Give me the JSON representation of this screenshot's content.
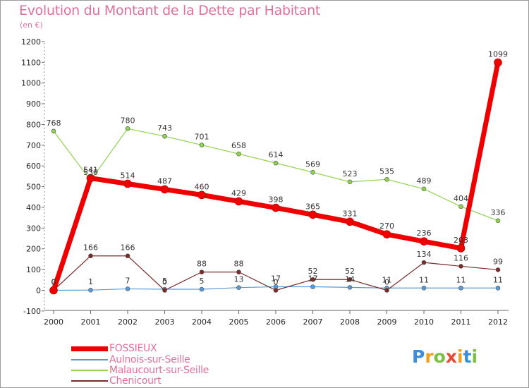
{
  "title": "Evolution du Montant de la Dette par Habitant",
  "unit_label": "(en €)",
  "logo_text": "Proxiti",
  "colors": {
    "title": "#e0709a",
    "FOSSIEUX": "#ee0000",
    "Aulnois-sur-Seille": "#5b9bd5",
    "Malaucourt-sur-Seille": "#8fd14f",
    "Chenicourt": "#7b2a2a"
  },
  "chart_data": {
    "type": "line",
    "title": "Evolution du Montant de la Dette par Habitant",
    "ylabel": "(en €)",
    "xlabel": "",
    "x": [
      "2000",
      "2001",
      "2002",
      "2003",
      "2004",
      "2005",
      "2006",
      "2007",
      "2008",
      "2009",
      "2010",
      "2011",
      "2012"
    ],
    "ylim": [
      -100,
      1200
    ],
    "yticks": [
      -100,
      0,
      100,
      200,
      300,
      400,
      500,
      600,
      700,
      800,
      900,
      1000,
      1100,
      1200
    ],
    "grid": false,
    "legend_position": "bottom-left",
    "series": [
      {
        "name": "FOSSIEUX",
        "color": "#ee0000",
        "values": [
          0,
          541,
          514,
          487,
          460,
          429,
          398,
          365,
          331,
          270,
          236,
          203,
          1099
        ]
      },
      {
        "name": "Aulnois-sur-Seille",
        "color": "#5b9bd5",
        "values": [
          0,
          1,
          7,
          5,
          5,
          13,
          17,
          17,
          14,
          11,
          11,
          11,
          11
        ]
      },
      {
        "name": "Malaucourt-sur-Seille",
        "color": "#8fd14f",
        "values": [
          768,
          530,
          780,
          743,
          701,
          658,
          614,
          569,
          523,
          535,
          489,
          404,
          336
        ]
      },
      {
        "name": "Chenicourt",
        "color": "#7b2a2a",
        "values": [
          0,
          166,
          166,
          0,
          88,
          88,
          0,
          52,
          52,
          0,
          134,
          116,
          99
        ]
      }
    ]
  }
}
